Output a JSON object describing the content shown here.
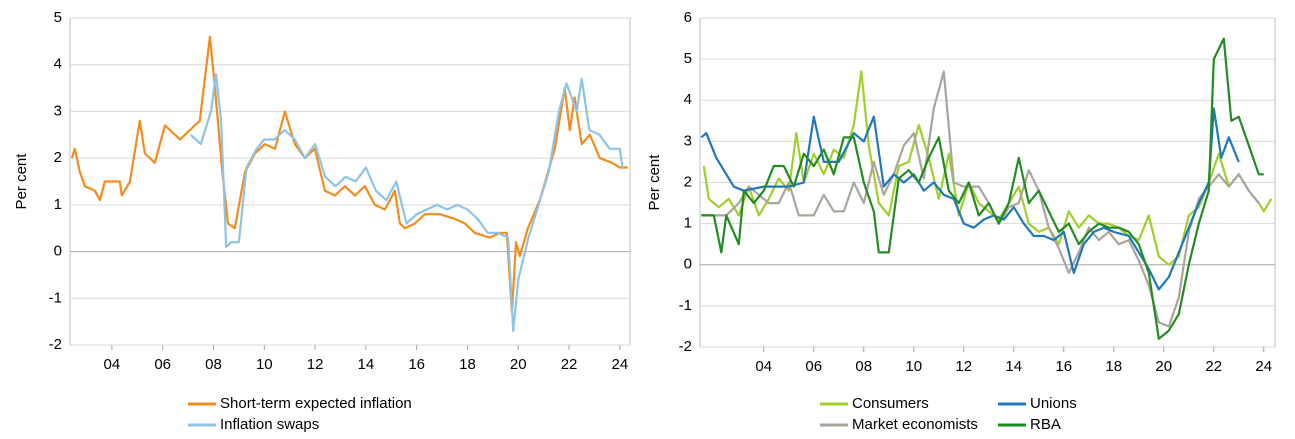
{
  "chart_data": [
    {
      "type": "line",
      "y_label": "Per cent",
      "xlim": [
        2.35,
        24.4
      ],
      "ylim": [
        -2,
        5
      ],
      "xticks": [
        {
          "value": 4,
          "label": "04"
        },
        {
          "value": 6,
          "label": "06"
        },
        {
          "value": 8,
          "label": "08"
        },
        10,
        12,
        14,
        16,
        18,
        20,
        22,
        24
      ],
      "yticks": [
        -2,
        -1,
        0,
        1,
        2,
        3,
        4,
        5
      ],
      "grid": true,
      "series": [
        {
          "name": "Short-term expected inflation",
          "color": "#f28c1e",
          "x": [
            2.43,
            2.54,
            2.74,
            2.94,
            3.33,
            3.53,
            3.72,
            4.31,
            4.39,
            4.71,
            5.1,
            5.3,
            5.69,
            6.09,
            6.68,
            7.07,
            7.46,
            7.86,
            8.06,
            8.33,
            8.57,
            8.84,
            9.24,
            9.63,
            10.02,
            10.42,
            10.81,
            11.2,
            11.6,
            11.99,
            12.39,
            12.78,
            13.17,
            13.57,
            13.96,
            14.35,
            14.75,
            15.14,
            15.34,
            15.54,
            15.93,
            16.32,
            16.91,
            17.5,
            17.9,
            18.29,
            18.88,
            19.28,
            19.55,
            19.75,
            19.91,
            20.06,
            20.38,
            20.85,
            21.44,
            21.83,
            22.03,
            22.22,
            22.5,
            22.82,
            23.21,
            23.69,
            24.0,
            24.31
          ],
          "values": [
            2.0,
            2.2,
            1.7,
            1.4,
            1.3,
            1.1,
            1.5,
            1.5,
            1.2,
            1.5,
            2.8,
            2.1,
            1.9,
            2.7,
            2.4,
            2.6,
            2.8,
            4.6,
            3.5,
            1.8,
            0.6,
            0.5,
            1.7,
            2.1,
            2.3,
            2.2,
            3.0,
            2.3,
            2.0,
            2.2,
            1.3,
            1.2,
            1.4,
            1.2,
            1.4,
            1.0,
            0.9,
            1.3,
            0.6,
            0.5,
            0.6,
            0.8,
            0.8,
            0.7,
            0.6,
            0.4,
            0.3,
            0.4,
            0.4,
            -1.3,
            0.2,
            -0.1,
            0.5,
            1.1,
            2.2,
            3.5,
            2.6,
            3.3,
            2.3,
            2.5,
            2.0,
            1.9,
            1.8,
            1.8
          ]
        },
        {
          "name": "Inflation swaps",
          "color": "#8ec3e6",
          "x": [
            7.1,
            7.5,
            7.9,
            8.1,
            8.3,
            8.5,
            8.7,
            9.0,
            9.3,
            9.7,
            10.0,
            10.4,
            10.8,
            11.2,
            11.6,
            12.0,
            12.4,
            12.8,
            13.2,
            13.6,
            14.0,
            14.4,
            14.8,
            15.2,
            15.6,
            16.0,
            16.4,
            16.8,
            17.2,
            17.6,
            18.0,
            18.4,
            18.8,
            19.2,
            19.6,
            19.8,
            20.0,
            20.4,
            20.8,
            21.2,
            21.6,
            21.9,
            22.3,
            22.5,
            22.8,
            23.2,
            23.6,
            24.0,
            24.1
          ],
          "values": [
            2.5,
            2.3,
            3.0,
            3.8,
            2.8,
            0.1,
            0.2,
            0.2,
            1.8,
            2.2,
            2.4,
            2.4,
            2.6,
            2.4,
            2.0,
            2.3,
            1.6,
            1.4,
            1.6,
            1.5,
            1.8,
            1.3,
            1.1,
            1.5,
            0.6,
            0.8,
            0.9,
            1.0,
            0.9,
            1.0,
            0.9,
            0.7,
            0.4,
            0.4,
            0.3,
            -1.7,
            -0.6,
            0.3,
            1.0,
            1.7,
            3.0,
            3.6,
            3.0,
            3.7,
            2.6,
            2.5,
            2.2,
            2.2,
            1.8
          ]
        }
      ]
    },
    {
      "type": "line",
      "y_label": "Per cent",
      "xlim": [
        1.45,
        24.45
      ],
      "ylim": [
        -2,
        6
      ],
      "xticks": [
        {
          "value": 4,
          "label": "04"
        },
        {
          "value": 6,
          "label": "06"
        },
        {
          "value": 8,
          "label": "08"
        },
        10,
        12,
        14,
        16,
        18,
        20,
        22,
        24
      ],
      "yticks": [
        -2,
        -1,
        0,
        1,
        2,
        3,
        4,
        5,
        6
      ],
      "grid": true,
      "series": [
        {
          "name": "Consumers",
          "color": "#9fcf2a",
          "x": [
            1.6,
            1.8,
            2.2,
            2.6,
            3.0,
            3.4,
            3.8,
            4.2,
            4.6,
            5.0,
            5.3,
            5.6,
            6.0,
            6.4,
            6.8,
            7.2,
            7.6,
            7.9,
            8.2,
            8.6,
            9.0,
            9.4,
            9.8,
            10.2,
            10.6,
            11.0,
            11.4,
            11.8,
            12.2,
            12.6,
            13.0,
            13.4,
            13.8,
            14.2,
            14.6,
            15.0,
            15.4,
            15.8,
            16.2,
            16.6,
            17.0,
            17.4,
            17.8,
            18.2,
            18.6,
            19.0,
            19.4,
            19.8,
            20.2,
            20.6,
            21.0,
            21.4,
            21.8,
            22.2,
            22.6,
            23.0,
            23.4,
            23.8,
            24.0,
            24.3
          ],
          "values": [
            2.4,
            1.6,
            1.4,
            1.6,
            1.2,
            1.9,
            1.2,
            1.6,
            2.1,
            1.8,
            3.2,
            2.0,
            2.7,
            2.2,
            2.8,
            2.6,
            3.4,
            4.7,
            2.9,
            1.5,
            1.2,
            2.4,
            2.5,
            3.4,
            2.6,
            1.6,
            2.7,
            1.2,
            2.0,
            1.5,
            1.3,
            1.1,
            1.5,
            1.9,
            1.0,
            0.8,
            0.9,
            0.5,
            1.3,
            0.9,
            1.2,
            1.0,
            1.0,
            0.9,
            0.7,
            0.6,
            1.2,
            0.2,
            0.0,
            0.2,
            1.2,
            1.4,
            2.0,
            2.7,
            1.9,
            2.2,
            1.8,
            1.5,
            1.3,
            1.6
          ]
        },
        {
          "name": "Market economists",
          "color": "#aaa49d",
          "x": [
            1.5,
            2.5,
            3.0,
            3.4,
            3.8,
            4.2,
            4.6,
            5.0,
            5.4,
            6.0,
            6.4,
            6.8,
            7.2,
            7.6,
            8.0,
            8.4,
            8.8,
            9.2,
            9.6,
            10.0,
            10.4,
            10.8,
            11.2,
            11.6,
            12.0,
            12.6,
            13.0,
            13.4,
            13.8,
            14.2,
            14.6,
            15.0,
            15.4,
            15.8,
            16.2,
            16.6,
            17.0,
            17.4,
            17.8,
            18.2,
            18.6,
            19.0,
            19.4,
            19.8,
            20.2,
            20.6,
            21.0,
            21.4,
            21.8,
            22.2,
            22.6,
            23.0,
            23.4,
            23.8
          ],
          "values": [
            1.2,
            1.2,
            1.5,
            1.9,
            1.7,
            1.5,
            1.5,
            2.0,
            1.2,
            1.2,
            1.7,
            1.3,
            1.3,
            2.0,
            1.5,
            2.5,
            1.7,
            2.2,
            2.9,
            3.2,
            2.1,
            3.8,
            4.7,
            2.0,
            1.9,
            1.9,
            1.5,
            1.0,
            1.4,
            1.5,
            2.3,
            1.8,
            0.9,
            0.4,
            -0.2,
            0.3,
            0.9,
            0.6,
            0.8,
            0.5,
            0.6,
            0.1,
            -0.5,
            -1.4,
            -1.5,
            -0.8,
            0.8,
            1.6,
            1.9,
            2.2,
            1.9,
            2.2,
            1.8,
            1.5
          ]
        },
        {
          "name": "Unions",
          "color": "#1f78b9",
          "x": [
            1.5,
            1.7,
            2.1,
            2.5,
            2.8,
            3.2,
            4.0,
            5.0,
            5.6,
            6.0,
            6.4,
            7.0,
            7.6,
            8.0,
            8.4,
            8.8,
            9.2,
            9.6,
            10.0,
            10.4,
            10.8,
            11.2,
            11.6,
            12.0,
            12.4,
            12.8,
            13.2,
            13.6,
            14.0,
            14.4,
            14.8,
            15.2,
            15.6,
            16.0,
            16.4,
            16.8,
            17.2,
            17.6,
            18.0,
            18.6,
            19.0,
            19.4,
            19.8,
            20.2,
            20.6,
            21.0,
            21.4,
            21.8,
            22.0,
            22.3,
            22.6,
            23.0
          ],
          "values": [
            3.1,
            3.2,
            2.6,
            2.2,
            1.9,
            1.8,
            1.9,
            1.9,
            2.0,
            3.6,
            2.5,
            2.5,
            3.2,
            3.0,
            3.6,
            1.9,
            2.2,
            2.0,
            2.2,
            1.8,
            2.0,
            1.7,
            1.6,
            1.0,
            0.9,
            1.1,
            1.2,
            1.1,
            1.4,
            1.0,
            0.7,
            0.7,
            0.6,
            0.8,
            -0.2,
            0.5,
            0.8,
            0.9,
            0.8,
            0.7,
            0.3,
            -0.1,
            -0.6,
            -0.3,
            0.3,
            0.9,
            1.5,
            2.0,
            3.8,
            2.6,
            3.1,
            2.5
          ]
        },
        {
          "name": "RBA",
          "color": "#238b23",
          "x": [
            1.5,
            2.0,
            2.3,
            2.5,
            3.0,
            3.2,
            3.6,
            4.0,
            4.4,
            4.8,
            5.2,
            5.6,
            6.0,
            6.4,
            6.8,
            7.2,
            7.6,
            8.0,
            8.4,
            8.6,
            9.0,
            9.4,
            9.8,
            10.2,
            10.6,
            11.0,
            11.4,
            11.8,
            12.2,
            12.6,
            13.0,
            13.4,
            13.8,
            14.2,
            14.6,
            15.0,
            15.4,
            15.8,
            16.2,
            16.6,
            17.0,
            17.4,
            17.8,
            18.2,
            18.6,
            19.0,
            19.4,
            19.8,
            20.2,
            20.6,
            21.0,
            21.4,
            21.8,
            22.0,
            22.4,
            22.7,
            23.0,
            23.4,
            23.8,
            24.0
          ],
          "values": [
            1.2,
            1.2,
            0.3,
            1.2,
            0.5,
            1.8,
            1.5,
            1.8,
            2.4,
            2.4,
            1.9,
            2.7,
            2.4,
            2.8,
            2.2,
            3.1,
            3.1,
            2.0,
            1.3,
            0.3,
            0.3,
            2.1,
            2.3,
            2.0,
            2.6,
            3.1,
            1.8,
            1.5,
            2.0,
            1.2,
            1.5,
            1.0,
            1.5,
            2.6,
            1.5,
            1.8,
            1.3,
            0.8,
            1.0,
            0.5,
            0.8,
            1.0,
            0.9,
            0.9,
            0.8,
            0.5,
            -0.2,
            -1.8,
            -1.6,
            -1.2,
            0.0,
            1.0,
            1.8,
            5.0,
            5.5,
            3.5,
            3.6,
            2.9,
            2.2,
            2.2
          ]
        }
      ]
    }
  ]
}
